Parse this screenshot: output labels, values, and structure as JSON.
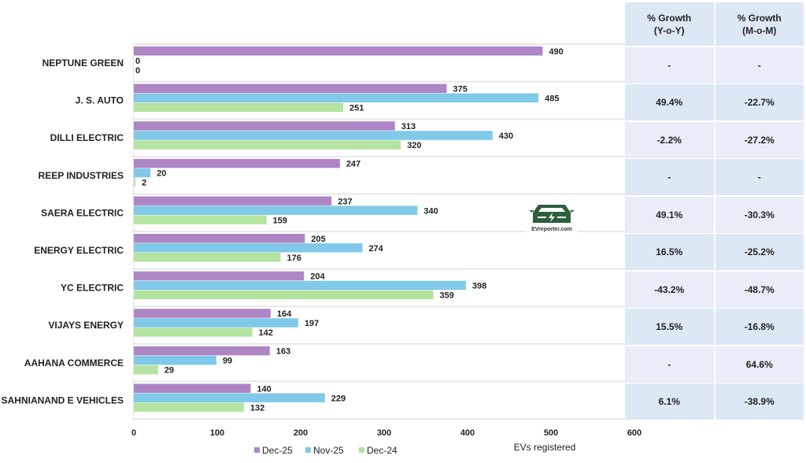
{
  "chart_data": {
    "type": "bar",
    "orientation": "horizontal",
    "title": "",
    "xlabel": "EVs registered",
    "ylabel": "",
    "xlim": [
      0,
      600
    ],
    "xticks": [
      0,
      100,
      200,
      300,
      400,
      500,
      600
    ],
    "grid": false,
    "legend_position": "bottom-center",
    "categories": [
      "NEPTUNE GREEN",
      "J. S. AUTO",
      "DILLI ELECTRIC",
      "REEP INDUSTRIES",
      "SAERA ELECTRIC",
      "ENERGY ELECTRIC",
      "YC ELECTRIC",
      "VIJAYS ENERGY",
      "AAHANA COMMERCE",
      "SAHNIANAND E VEHICLES"
    ],
    "series": [
      {
        "name": "Dec-25",
        "color": "#ae86c5",
        "values": [
          490,
          375,
          313,
          247,
          237,
          205,
          204,
          164,
          163,
          140
        ]
      },
      {
        "name": "Nov-25",
        "color": "#80c9e8",
        "values": [
          0,
          485,
          430,
          20,
          340,
          274,
          398,
          197,
          99,
          229
        ]
      },
      {
        "name": "Dec-24",
        "color": "#b5e3a1",
        "values": [
          0,
          251,
          320,
          2,
          159,
          176,
          359,
          142,
          29,
          132
        ]
      }
    ]
  },
  "growth_table": {
    "headers": [
      "% Growth\n(Y-o-Y)",
      "% Growth\n(M-o-M)"
    ],
    "rows": [
      {
        "yoy": "-",
        "mom": "-"
      },
      {
        "yoy": "49.4%",
        "mom": "-22.7%"
      },
      {
        "yoy": "-2.2%",
        "mom": "-27.2%"
      },
      {
        "yoy": "-",
        "mom": "-"
      },
      {
        "yoy": "49.1%",
        "mom": "-30.3%"
      },
      {
        "yoy": "16.5%",
        "mom": "-25.2%"
      },
      {
        "yoy": "-43.2%",
        "mom": "-48.7%"
      },
      {
        "yoy": "15.5%",
        "mom": "-16.8%"
      },
      {
        "yoy": "-",
        "mom": "64.6%"
      },
      {
        "yoy": "6.1%",
        "mom": "-38.9%"
      }
    ]
  },
  "watermark": {
    "icon": "ev-car-icon",
    "text": "EVreporter.com",
    "color": "#2e5e3e"
  }
}
